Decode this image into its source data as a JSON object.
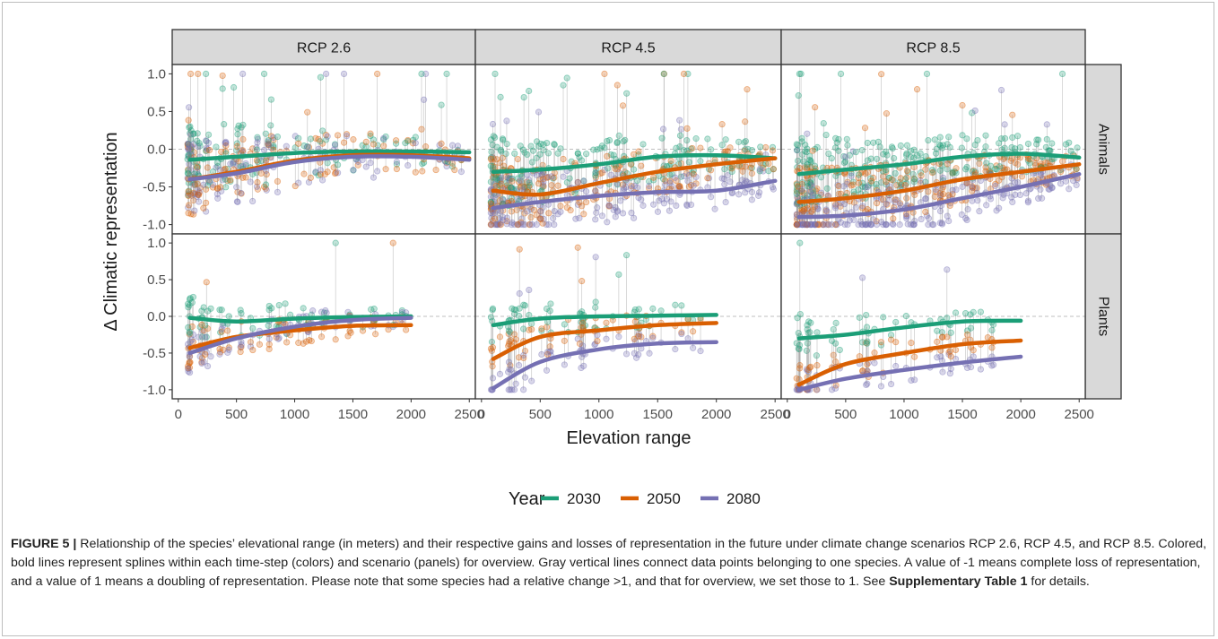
{
  "chart_data": {
    "type": "scatter",
    "facet_columns": [
      "RCP 2.6",
      "RCP 4.5",
      "RCP 8.5"
    ],
    "facet_rows": [
      "Animals",
      "Plants"
    ],
    "xlabel": "Elevation range",
    "ylabel": "Δ Climatic representation",
    "xlim": [
      0,
      2500
    ],
    "ylim": [
      -1.0,
      1.0
    ],
    "xticks": [
      "0",
      "500",
      "1000",
      "1500",
      "2000",
      "2500"
    ],
    "yticks": [
      "1.0",
      "0.5",
      "0.0",
      "-0.5",
      "-1.0"
    ],
    "reference_line": 0.0,
    "grid": false,
    "legend": {
      "title": "Year",
      "position": "bottom",
      "entries": [
        {
          "label": "2030",
          "color": "#1b9e77"
        },
        {
          "label": "2050",
          "color": "#d95f02"
        },
        {
          "label": "2080",
          "color": "#7570b3"
        }
      ]
    },
    "splines": [
      {
        "scenario": "RCP 2.6",
        "group": "Animals",
        "series": [
          {
            "name": "2030",
            "x": [
              100,
              500,
              1000,
              1500,
              2000,
              2500
            ],
            "y": [
              -0.14,
              -0.1,
              -0.05,
              -0.03,
              -0.03,
              -0.04
            ]
          },
          {
            "name": "2050",
            "x": [
              100,
              500,
              1000,
              1500,
              2000,
              2500
            ],
            "y": [
              -0.4,
              -0.3,
              -0.15,
              -0.08,
              -0.08,
              -0.12
            ]
          },
          {
            "name": "2080",
            "x": [
              100,
              500,
              1000,
              1500,
              2000,
              2500
            ],
            "y": [
              -0.4,
              -0.32,
              -0.17,
              -0.1,
              -0.1,
              -0.14
            ]
          }
        ]
      },
      {
        "scenario": "RCP 4.5",
        "group": "Animals",
        "series": [
          {
            "name": "2030",
            "x": [
              100,
              500,
              1000,
              1500,
              2000,
              2500
            ],
            "y": [
              -0.3,
              -0.27,
              -0.2,
              -0.1,
              -0.08,
              -0.12
            ]
          },
          {
            "name": "2050",
            "x": [
              100,
              500,
              1000,
              1500,
              2000,
              2500
            ],
            "y": [
              -0.55,
              -0.6,
              -0.45,
              -0.3,
              -0.2,
              -0.12
            ]
          },
          {
            "name": "2080",
            "x": [
              100,
              500,
              1000,
              1500,
              2000,
              2500
            ],
            "y": [
              -0.78,
              -0.7,
              -0.62,
              -0.57,
              -0.55,
              -0.42
            ]
          }
        ]
      },
      {
        "scenario": "RCP 8.5",
        "group": "Animals",
        "series": [
          {
            "name": "2030",
            "x": [
              100,
              500,
              1000,
              1500,
              2000,
              2500
            ],
            "y": [
              -0.33,
              -0.27,
              -0.2,
              -0.1,
              -0.06,
              -0.11
            ]
          },
          {
            "name": "2050",
            "x": [
              100,
              500,
              1000,
              1500,
              2000,
              2500
            ],
            "y": [
              -0.7,
              -0.65,
              -0.55,
              -0.4,
              -0.3,
              -0.2
            ]
          },
          {
            "name": "2080",
            "x": [
              100,
              500,
              1000,
              1500,
              2000,
              2500
            ],
            "y": [
              -0.9,
              -0.88,
              -0.8,
              -0.65,
              -0.5,
              -0.33
            ]
          }
        ]
      },
      {
        "scenario": "RCP 2.6",
        "group": "Plants",
        "series": [
          {
            "name": "2030",
            "x": [
              100,
              500,
              1000,
              1500,
              2000
            ],
            "y": [
              -0.02,
              -0.07,
              -0.03,
              -0.01,
              0.0
            ]
          },
          {
            "name": "2050",
            "x": [
              100,
              500,
              1000,
              1500,
              2000
            ],
            "y": [
              -0.43,
              -0.28,
              -0.19,
              -0.13,
              -0.12
            ]
          },
          {
            "name": "2080",
            "x": [
              100,
              500,
              1000,
              1500,
              2000
            ],
            "y": [
              -0.5,
              -0.3,
              -0.14,
              -0.05,
              -0.02
            ]
          }
        ]
      },
      {
        "scenario": "RCP 4.5",
        "group": "Plants",
        "series": [
          {
            "name": "2030",
            "x": [
              100,
              500,
              1000,
              1500,
              2000
            ],
            "y": [
              -0.12,
              -0.03,
              0.0,
              0.01,
              0.02
            ]
          },
          {
            "name": "2050",
            "x": [
              100,
              500,
              1000,
              1500,
              2000
            ],
            "y": [
              -0.58,
              -0.28,
              -0.19,
              -0.12,
              -0.09
            ]
          },
          {
            "name": "2080",
            "x": [
              100,
              500,
              1000,
              1500,
              2000
            ],
            "y": [
              -0.98,
              -0.62,
              -0.45,
              -0.37,
              -0.35
            ]
          }
        ]
      },
      {
        "scenario": "RCP 8.5",
        "group": "Plants",
        "series": [
          {
            "name": "2030",
            "x": [
              100,
              500,
              1000,
              1500,
              2000
            ],
            "y": [
              -0.3,
              -0.25,
              -0.15,
              -0.07,
              -0.06
            ]
          },
          {
            "name": "2050",
            "x": [
              100,
              500,
              1000,
              1500,
              2000
            ],
            "y": [
              -0.93,
              -0.65,
              -0.5,
              -0.38,
              -0.33
            ]
          },
          {
            "name": "2080",
            "x": [
              100,
              500,
              1000,
              1500,
              2000
            ],
            "y": [
              -1.0,
              -0.85,
              -0.73,
              -0.63,
              -0.55
            ]
          }
        ]
      }
    ]
  },
  "caption": {
    "label": "FIGURE 5 |",
    "text_before": " Relationship of the species’ elevational range (in meters) and their respective gains and losses of representation in the future under climate change scenarios RCP 2.6, RCP 4.5, and RCP 8.5. Colored, bold lines represent splines within each time-step (colors) and scenario (panels) for overview. Gray vertical lines connect data points belonging to one species. A value of -1 means complete loss of representation, and a value of 1 means a doubling of representation. Please note that some species had a relative change >1, and that for overview, we set those to 1. See ",
    "bold_ref": "Supplementary Table 1",
    "text_after": " for details."
  }
}
